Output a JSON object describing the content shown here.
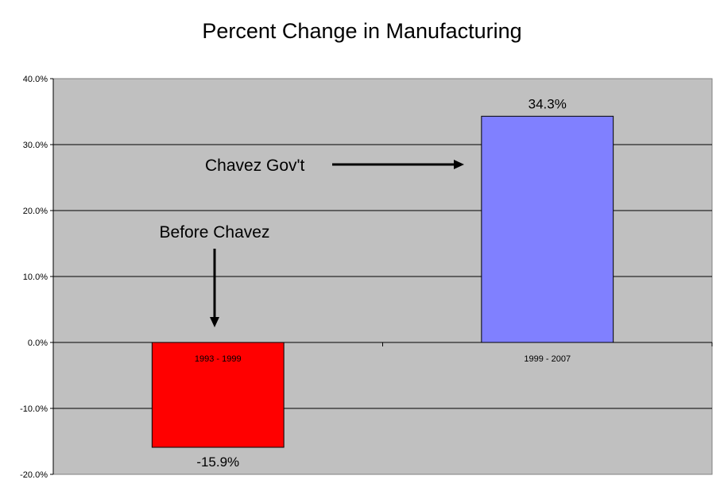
{
  "chart_data": {
    "type": "bar",
    "title": "Percent Change in Manufacturing",
    "categories": [
      "1993 - 1999",
      "1999 - 2007"
    ],
    "values": [
      -15.9,
      34.3
    ],
    "data_labels": [
      "-15.9%",
      "34.3%"
    ],
    "bar_colors": [
      "#ff0000",
      "#8080ff"
    ],
    "plot_background": "#c0c0c0",
    "ylim": [
      -20,
      40
    ],
    "yticks": [
      -20,
      -10,
      0,
      10,
      20,
      30,
      40
    ],
    "ytick_labels": [
      "-20.0%",
      "-10.0%",
      "0.0%",
      "10.0%",
      "20.0%",
      "30.0%",
      "40.0%"
    ],
    "grid": true,
    "xlabel": "",
    "ylabel": "",
    "annotations": [
      "Before Chavez",
      "Chavez Gov't"
    ]
  }
}
